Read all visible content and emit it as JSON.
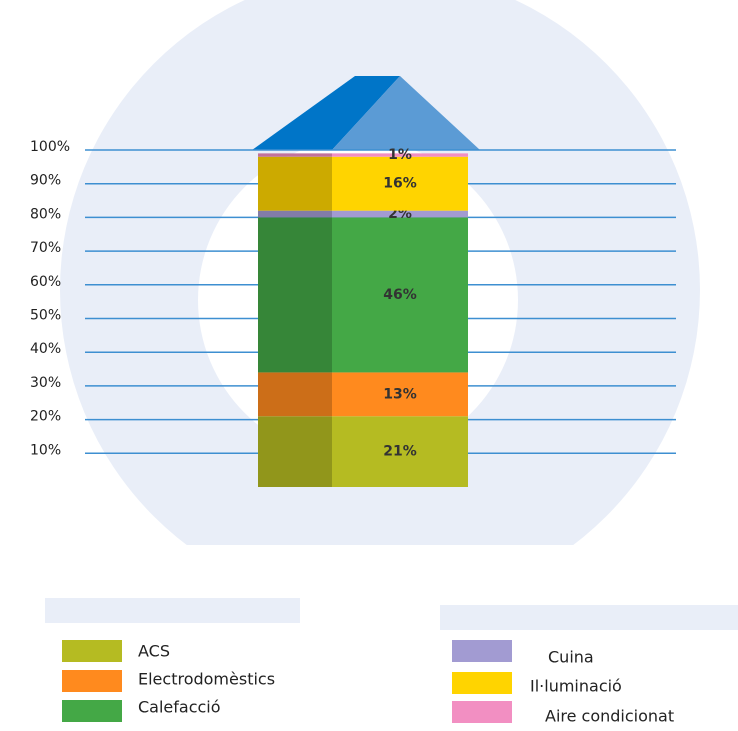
{
  "chart_data": {
    "type": "stacked-bar",
    "series": [
      {
        "name": "ACS",
        "color": "#b5bb22",
        "values": [
          21
        ],
        "value_labels": [
          "21%"
        ]
      },
      {
        "name": "Electrodomèstics",
        "color": "#ff8a1e",
        "values": [
          13
        ],
        "value_labels": [
          "13%"
        ]
      },
      {
        "name": "Calefacció",
        "color": "#44a846",
        "values": [
          46
        ],
        "value_labels": [
          "46%"
        ]
      },
      {
        "name": "Cuina",
        "color": "#a29bd2",
        "values": [
          2
        ],
        "value_labels": [
          "2%"
        ]
      },
      {
        "name": "Il·luminació",
        "color": "#ffd400",
        "values": [
          16
        ],
        "value_labels": [
          "16%"
        ]
      },
      {
        "name": "Aire condicionat",
        "color": "#f28fc2",
        "values": [
          1
        ],
        "value_labels": [
          "1%"
        ]
      }
    ],
    "ylim": [
      0,
      100
    ],
    "yticks": [
      {
        "value": 10,
        "label": "10%"
      },
      {
        "value": 20,
        "label": "20%"
      },
      {
        "value": 30,
        "label": "30%"
      },
      {
        "value": 40,
        "label": "40%"
      },
      {
        "value": 50,
        "label": "50%"
      },
      {
        "value": 60,
        "label": "60%"
      },
      {
        "value": 70,
        "label": "70%"
      },
      {
        "value": 80,
        "label": "80%"
      },
      {
        "value": 90,
        "label": "90%"
      },
      {
        "value": 100,
        "label": "100%"
      }
    ],
    "grid": true
  }
}
